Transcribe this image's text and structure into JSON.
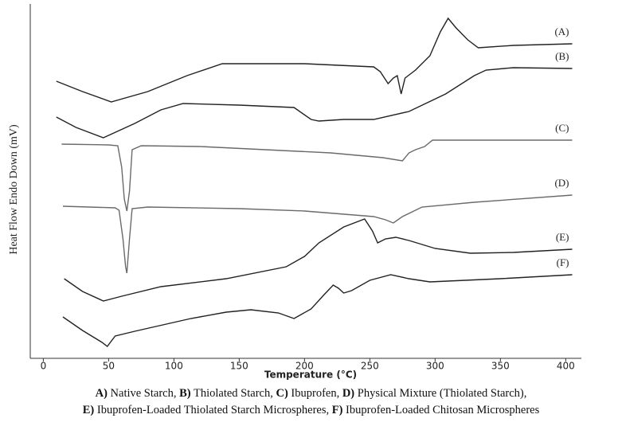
{
  "chart_data": {
    "type": "line",
    "xlabel": "Temperature (°C)",
    "ylabel": "Heat Flow Endo Down (mV)",
    "xlim": [
      -10,
      412
    ],
    "xticks": [
      0,
      50,
      100,
      150,
      200,
      250,
      300,
      350,
      400
    ],
    "ylim": [
      0,
      445
    ],
    "series": [
      {
        "name": "(A)",
        "color": "#222222",
        "x": [
          10,
          30,
          52,
          80,
          110,
          137,
          200,
          253,
          258,
          264,
          268,
          271,
          274,
          277,
          285,
          296,
          304,
          310,
          316,
          325,
          333,
          360,
          405
        ],
        "values": [
          348,
          335,
          322,
          335,
          355,
          370,
          370,
          366,
          360,
          345,
          352,
          355,
          332,
          352,
          362,
          380,
          410,
          427,
          415,
          400,
          390,
          393,
          395
        ]
      },
      {
        "name": "(B)",
        "color": "#222222",
        "x": [
          10,
          25,
          46,
          70,
          90,
          107,
          150,
          192,
          205,
          211,
          230,
          253,
          280,
          308,
          330,
          339,
          360,
          405
        ],
        "values": [
          303,
          290,
          277,
          295,
          312,
          320,
          318,
          315,
          300,
          298,
          300,
          300,
          310,
          332,
          355,
          362,
          365,
          364
        ]
      },
      {
        "name": "(C)",
        "color": "#6a6a6a",
        "x": [
          14,
          50,
          57,
          60,
          62,
          64,
          66,
          68,
          75,
          120,
          170,
          220,
          260,
          275,
          280,
          285,
          292,
          298,
          405
        ],
        "values": [
          269,
          268,
          267,
          240,
          200,
          185,
          210,
          262,
          267,
          266,
          262,
          258,
          252,
          248,
          258,
          262,
          266,
          274,
          274
        ]
      },
      {
        "name": "(D)",
        "color": "#6a6a6a",
        "x": [
          15,
          55,
          58,
          61,
          63,
          64,
          66,
          68,
          80,
          150,
          200,
          253,
          262,
          268,
          275,
          290,
          330,
          405
        ],
        "values": [
          191,
          189,
          186,
          150,
          115,
          107,
          150,
          188,
          190,
          188,
          185,
          178,
          174,
          170,
          178,
          190,
          196,
          205
        ]
      },
      {
        "name": "(E)",
        "color": "#222222",
        "x": [
          16,
          30,
          46,
          60,
          90,
          140,
          186,
          200,
          211,
          230,
          246,
          252,
          256,
          262,
          270,
          280,
          300,
          327,
          360,
          405
        ],
        "values": [
          100,
          84,
          72,
          78,
          90,
          100,
          115,
          128,
          145,
          165,
          175,
          160,
          145,
          150,
          152,
          148,
          138,
          132,
          133,
          137
        ]
      },
      {
        "name": "(F)",
        "color": "#222222",
        "x": [
          15,
          30,
          45,
          49,
          55,
          70,
          113,
          140,
          159,
          180,
          192,
          205,
          215,
          222,
          226,
          230,
          236,
          250,
          266,
          280,
          296,
          350,
          405
        ],
        "values": [
          52,
          35,
          20,
          15,
          28,
          34,
          50,
          58,
          61,
          57,
          50,
          62,
          80,
          92,
          88,
          82,
          85,
          98,
          105,
          100,
          96,
          100,
          105
        ]
      }
    ]
  },
  "caption": [
    [
      "A)",
      " Native Starch, "
    ],
    [
      "B)",
      " Thiolated Starch, "
    ],
    [
      "C)",
      " Ibuprofen, "
    ],
    [
      "D)",
      " Physical Mixture (Thiolated Starch),"
    ],
    [
      "E)",
      " Ibuprofen-Loaded Thiolated Starch Microspheres, "
    ],
    [
      "F)",
      " Ibuprofen-Loaded Chitosan Microspheres"
    ]
  ]
}
